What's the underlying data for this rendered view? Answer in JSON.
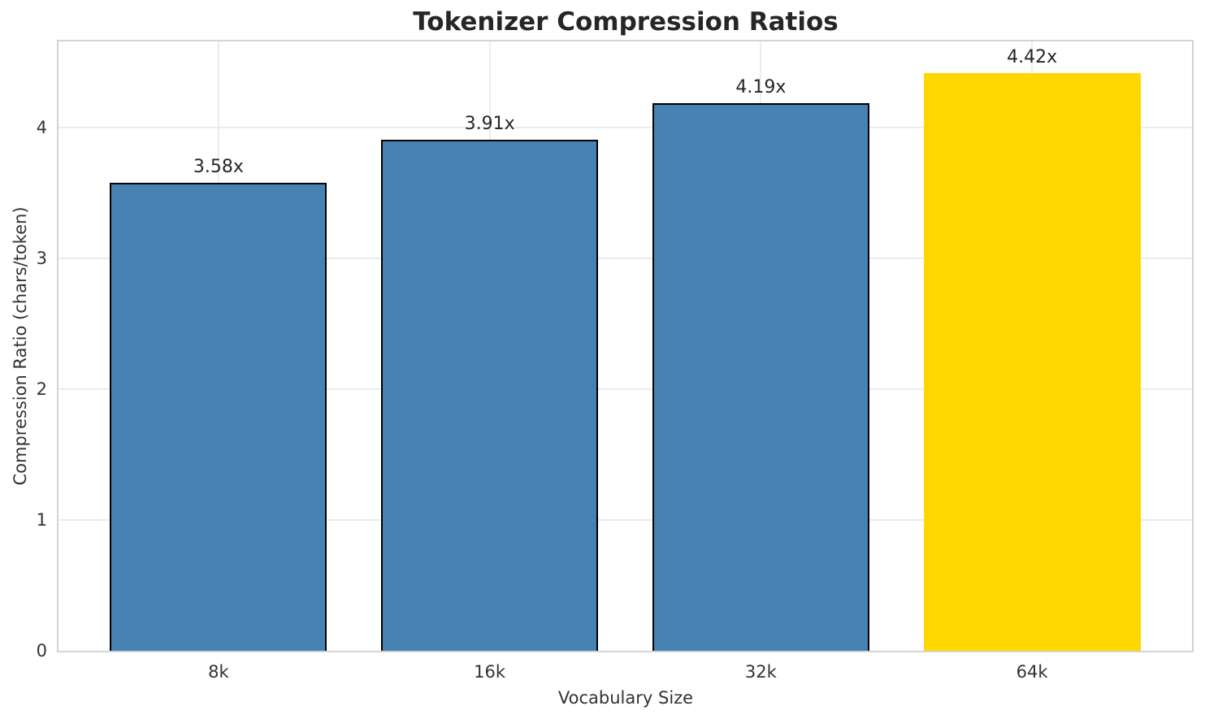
{
  "chart_data": {
    "type": "bar",
    "title": "Tokenizer Compression Ratios",
    "xlabel": "Vocabulary Size",
    "ylabel": "Compression Ratio (chars/token)",
    "categories": [
      "8k",
      "16k",
      "32k",
      "64k"
    ],
    "values": [
      3.58,
      3.91,
      4.19,
      4.42
    ],
    "bar_labels": [
      "3.58x",
      "3.91x",
      "4.19x",
      "4.42x"
    ],
    "y_ticks": [
      0,
      1,
      2,
      3,
      4
    ],
    "ylim": [
      0,
      4.66
    ],
    "xlim": [
      -0.59,
      3.59
    ],
    "bar_width_units": 0.8,
    "grid": true,
    "legend": "none",
    "bar_colors": [
      "#4682b4",
      "#4682b4",
      "#4682b4",
      "#ffd700"
    ],
    "bar_edge_colors": [
      "#000000",
      "#000000",
      "#000000",
      "none"
    ],
    "highlight_index": 3
  },
  "colors": {
    "background": "#ffffff",
    "gridline": "#ececec",
    "spine": "#d4d4d4",
    "tick_text": "#333333",
    "title_text": "#262626",
    "bar_blue": "#4682b4",
    "bar_gold": "#ffd700",
    "bar_edge": "#000000"
  }
}
